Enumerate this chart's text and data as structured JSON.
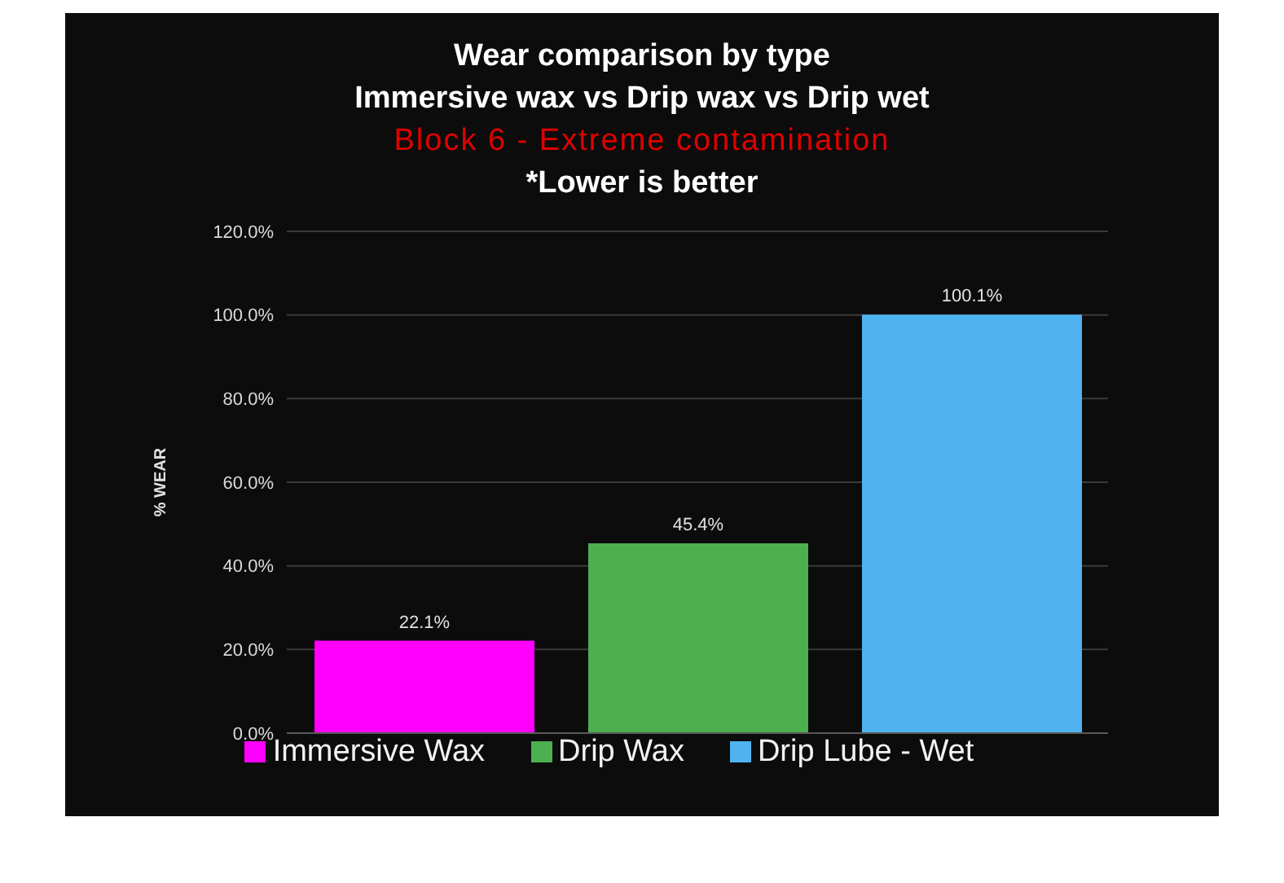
{
  "chart_data": {
    "type": "bar",
    "title": "Wear comparison by type",
    "subtitle": "Immersive wax vs Drip wax vs Drip wet",
    "annotations": [
      "Block 6 - Extreme contamination",
      "*Lower is better"
    ],
    "categories": [
      null
    ],
    "series": [
      {
        "name": "Immersive Wax",
        "color": "#ff00ff",
        "values": [
          22.1
        ],
        "value_labels": [
          "22.1%"
        ]
      },
      {
        "name": "Drip Wax",
        "color": "#4caf50",
        "values": [
          45.4
        ],
        "value_labels": [
          "45.4%"
        ]
      },
      {
        "name": "Drip Lube - Wet",
        "color": "#4fb3ef",
        "values": [
          100.1
        ],
        "value_labels": [
          "100.1%"
        ]
      }
    ],
    "ylabel": "% WEAR",
    "ylim": [
      0,
      120
    ],
    "yticks": [
      {
        "value": 0,
        "label": "0.0%"
      },
      {
        "value": 20,
        "label": "20.0%"
      },
      {
        "value": 40,
        "label": "40.0%"
      },
      {
        "value": 60,
        "label": "60.0%"
      },
      {
        "value": 80,
        "label": "80.0%"
      },
      {
        "value": 100,
        "label": "100.0%"
      },
      {
        "value": 120,
        "label": "120.0%"
      }
    ],
    "grid": "y",
    "legend": "bottom",
    "tick_labels": "y"
  }
}
